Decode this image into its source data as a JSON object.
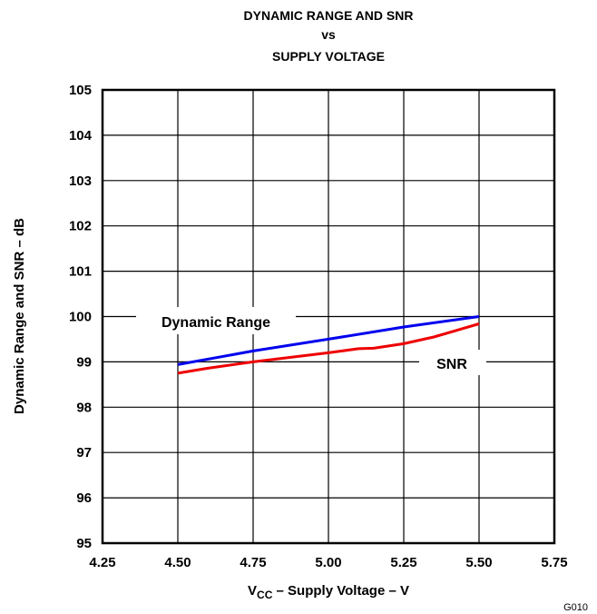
{
  "chart_data": {
    "type": "line",
    "title": [
      "DYNAMIC RANGE AND SNR",
      "vs",
      "SUPPLY VOLTAGE"
    ],
    "xlabel": {
      "main": "V",
      "sub": "CC",
      "rest": " – Supply Voltage – V"
    },
    "ylabel": "Dynamic Range and SNR – dB",
    "xlim": [
      4.25,
      5.75
    ],
    "ylim": [
      95,
      105
    ],
    "x_ticks": [
      "4.25",
      "4.50",
      "4.75",
      "5.00",
      "5.25",
      "5.50",
      "5.75"
    ],
    "y_ticks": [
      "95",
      "96",
      "97",
      "98",
      "99",
      "100",
      "101",
      "102",
      "103",
      "104",
      "105"
    ],
    "grid": true,
    "series": [
      {
        "name": "Dynamic Range",
        "color": "#0000ee",
        "points": [
          [
            4.5,
            98.94
          ],
          [
            4.75,
            99.24
          ],
          [
            5.0,
            99.5
          ],
          [
            5.25,
            99.77
          ],
          [
            5.5,
            100.0
          ]
        ]
      },
      {
        "name": "SNR",
        "color": "#ee0000",
        "points": [
          [
            4.5,
            98.75
          ],
          [
            4.6,
            98.86
          ],
          [
            4.75,
            99.0
          ],
          [
            4.9,
            99.12
          ],
          [
            5.0,
            99.2
          ],
          [
            5.1,
            99.29
          ],
          [
            5.15,
            99.3
          ],
          [
            5.25,
            99.4
          ],
          [
            5.35,
            99.55
          ],
          [
            5.5,
            99.84
          ]
        ]
      }
    ],
    "annotations": [
      {
        "text": "Dynamic Range",
        "series": "Dynamic Range"
      },
      {
        "text": "SNR",
        "series": "SNR"
      }
    ],
    "figure_id": "G010"
  }
}
